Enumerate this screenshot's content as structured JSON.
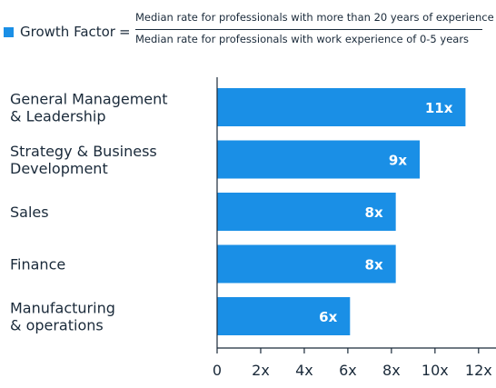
{
  "legend": {
    "label": "Growth Factor",
    "equals": "=",
    "numerator": "Median rate for professionals with more than 20 years of experience",
    "denominator": "Median rate for professionals with work experience of 0-5 years"
  },
  "colors": {
    "bar": "#1a8fe6",
    "text": "#1a2a3a",
    "axis": "#1a2a3a"
  },
  "chart_data": {
    "type": "bar",
    "orientation": "horizontal",
    "categories": [
      [
        "General Management",
        "& Leadership"
      ],
      [
        "Strategy & Business",
        "Development"
      ],
      [
        "Sales"
      ],
      [
        "Finance"
      ],
      [
        "Manufacturing",
        "& operations"
      ]
    ],
    "values": [
      11.4,
      9.3,
      8.2,
      8.2,
      6.1
    ],
    "data_labels": [
      "11x",
      "9x",
      "8x",
      "8x",
      "6x"
    ],
    "xticks": [
      0,
      2,
      4,
      6,
      8,
      10,
      12
    ],
    "xtick_labels": [
      "0",
      "2x",
      "4x",
      "6x",
      "8x",
      "10x",
      "12x"
    ],
    "xlim": [
      0,
      12.8
    ]
  }
}
